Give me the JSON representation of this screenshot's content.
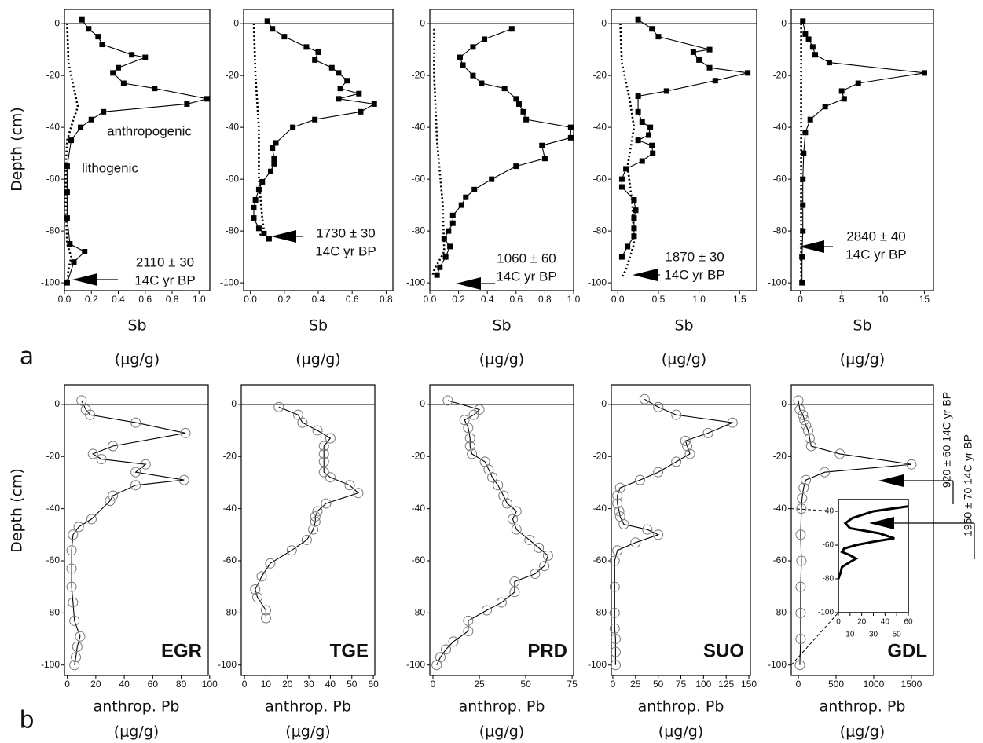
{
  "chart_data": [
    {
      "type": "line",
      "panel_label": "a",
      "ylabel": "Depth (cm)",
      "xlabel": "Sb",
      "xunit": "(μg/g)",
      "xlim": [
        0,
        1.08
      ],
      "xticks": [
        {
          "value": 0,
          "label": "0.0"
        },
        0.2,
        0.4,
        0.6,
        0.8,
        {
          "value": 1,
          "label": "1.0"
        }
      ],
      "ylim": [
        -103,
        5.5
      ],
      "yticks": [
        0,
        -20,
        -40,
        -60,
        -80,
        -100
      ],
      "annotation": [
        "2110 ± 30",
        "14C yr BP"
      ],
      "series": [
        {
          "name": "anthropogenic",
          "color": "#000000",
          "marker": "square",
          "line_style": "solid",
          "y": [
            1.5,
            -2,
            -5,
            -8,
            -12,
            -13,
            -17,
            -19,
            -23,
            -25,
            -29,
            -31,
            -34,
            -37,
            -40,
            -45,
            -55,
            -65,
            -75,
            -85,
            -88,
            -92,
            -100
          ],
          "x": [
            0.13,
            0.18,
            0.25,
            0.28,
            0.5,
            0.6,
            0.4,
            0.36,
            0.44,
            0.67,
            1.06,
            0.91,
            0.29,
            0.2,
            0.12,
            0.05,
            0.02,
            0.02,
            0.02,
            0.04,
            0.15,
            0.07,
            0.02
          ]
        },
        {
          "name": "lithogenic",
          "color": "#000000",
          "marker": "none",
          "line_style": "dotted",
          "y": [
            0,
            -15,
            -25,
            -32,
            -38,
            -45,
            -55,
            -70,
            -85,
            -90,
            -95,
            -100
          ],
          "x": [
            0.02,
            0.03,
            0.07,
            0.1,
            0.06,
            0.02,
            0.01,
            0.01,
            0.02,
            0.05,
            0.03,
            0.02
          ]
        }
      ]
    },
    {
      "type": "line",
      "xlabel": "Sb",
      "xunit": "(μg/g)",
      "xlim": [
        -0.04,
        0.84
      ],
      "xticks": [
        {
          "value": 0,
          "label": "0.0"
        },
        0.2,
        0.4,
        0.6,
        0.8
      ],
      "ylim": [
        -103,
        5.5
      ],
      "yticks": [
        0,
        -20,
        -40,
        -60,
        -80,
        -100
      ],
      "annotation": [
        "1730 ± 30",
        "14C yr BP"
      ],
      "series": [
        {
          "color": "#000000",
          "marker": "square",
          "line_style": "solid",
          "y": [
            1,
            -2,
            -5,
            -9,
            -11,
            -14,
            -17,
            -19,
            -22,
            -25,
            -27,
            -29,
            -31,
            -34,
            -37,
            -40,
            -46,
            -48,
            -52,
            -54,
            -57,
            -61,
            -64,
            -68,
            -71,
            -75,
            -79,
            -81,
            -83
          ],
          "x": [
            0.1,
            0.13,
            0.2,
            0.33,
            0.4,
            0.38,
            0.48,
            0.52,
            0.57,
            0.53,
            0.64,
            0.52,
            0.73,
            0.65,
            0.38,
            0.25,
            0.15,
            0.13,
            0.14,
            0.14,
            0.12,
            0.07,
            0.05,
            0.03,
            0.02,
            0.02,
            0.05,
            0.08,
            0.11
          ]
        },
        {
          "color": "#000000",
          "marker": "none",
          "line_style": "dotted",
          "y": [
            0,
            -20,
            -40,
            -60,
            -75,
            -80,
            -82
          ],
          "x": [
            0.02,
            0.03,
            0.05,
            0.05,
            0.07,
            0.08,
            0.05
          ]
        }
      ]
    },
    {
      "type": "line",
      "xlabel": "Sb",
      "xunit": "(μg/g)",
      "xlim": [
        0,
        1
      ],
      "xticks": [
        {
          "value": 0,
          "label": "0.0"
        },
        0.2,
        0.4,
        0.6,
        0.8,
        {
          "value": 1,
          "label": "1.0"
        }
      ],
      "ylim": [
        -103,
        5.5
      ],
      "yticks": [
        0,
        -20,
        -40,
        -60,
        -80,
        -100
      ],
      "annotation": [
        "1060 ± 60",
        "14C yr BP"
      ],
      "series": [
        {
          "color": "#000000",
          "marker": "square",
          "line_style": "solid",
          "y": [
            -2,
            -6,
            -9,
            -13,
            -16,
            -20,
            -23,
            -25,
            -29,
            -31,
            -34,
            -37,
            -40,
            -44,
            -47,
            -52,
            -55,
            -60,
            -64,
            -67,
            -70,
            -74,
            -77,
            -80,
            -83,
            -86,
            -90,
            -94,
            -97
          ],
          "x": [
            0.57,
            0.38,
            0.3,
            0.21,
            0.23,
            0.3,
            0.36,
            0.52,
            0.6,
            0.62,
            0.65,
            0.67,
            0.98,
            0.98,
            0.78,
            0.8,
            0.6,
            0.43,
            0.31,
            0.25,
            0.22,
            0.16,
            0.16,
            0.13,
            0.1,
            0.14,
            0.11,
            0.07,
            0.05
          ]
        },
        {
          "color": "#000000",
          "marker": "none",
          "line_style": "dotted",
          "y": [
            -2,
            -20,
            -45,
            -70,
            -88,
            -95,
            -97
          ],
          "x": [
            0.03,
            0.03,
            0.05,
            0.09,
            0.1,
            0.03,
            0.02
          ]
        }
      ]
    },
    {
      "type": "line",
      "xlabel": "Sb",
      "xunit": "(μg/g)",
      "xlim": [
        -0.08,
        1.71
      ],
      "xticks": [
        {
          "value": 0,
          "label": "0.0"
        },
        0.5,
        {
          "value": 1,
          "label": "1.0"
        },
        1.5
      ],
      "ylim": [
        -103,
        5.5
      ],
      "yticks": [
        0,
        -20,
        -40,
        -60,
        -80,
        -100
      ],
      "annotation": [
        "1870 ± 30",
        "14C yr BP"
      ],
      "series": [
        {
          "color": "#000000",
          "marker": "square",
          "line_style": "solid",
          "y": [
            1.5,
            -2,
            -5,
            -10,
            -11,
            -14,
            -17,
            -19,
            -22,
            -26,
            -28,
            -34,
            -38,
            -40,
            -43,
            -45,
            -47,
            -50,
            -53,
            -56,
            -60,
            -63,
            -68,
            -72,
            -75,
            -79,
            -82,
            -86,
            -90
          ],
          "x": [
            0.25,
            0.42,
            0.5,
            1.13,
            0.93,
            1.0,
            1.13,
            1.6,
            1.2,
            0.6,
            0.25,
            0.25,
            0.3,
            0.4,
            0.38,
            0.25,
            0.42,
            0.43,
            0.3,
            0.1,
            0.05,
            0.05,
            0.2,
            0.22,
            0.2,
            0.2,
            0.2,
            0.12,
            0.05
          ]
        },
        {
          "color": "#000000",
          "marker": "none",
          "line_style": "dotted",
          "y": [
            0,
            -15,
            -30,
            -40,
            -55,
            -70,
            -85,
            -95,
            -98
          ],
          "x": [
            0.03,
            0.05,
            0.15,
            0.2,
            0.12,
            0.18,
            0.2,
            0.1,
            0.05
          ]
        }
      ]
    },
    {
      "type": "line",
      "xlabel": "Sb",
      "xunit": "(μg/g)",
      "xlim": [
        -1.1,
        16.1
      ],
      "xticks": [
        0,
        5,
        10,
        15
      ],
      "ylim": [
        -103,
        5.5
      ],
      "yticks": [
        0,
        -20,
        -40,
        -60,
        -80,
        -100
      ],
      "annotation": [
        "2840 ± 40",
        "14C yr BP"
      ],
      "series": [
        {
          "color": "#000000",
          "marker": "square",
          "line_style": "solid",
          "y": [
            1,
            -4,
            -6,
            -9,
            -12,
            -15,
            -19,
            -23,
            -26,
            -29,
            -32,
            -37,
            -42,
            -50,
            -60,
            -70,
            -80,
            -90,
            -100
          ],
          "x": [
            0.3,
            0.6,
            1,
            1.5,
            1.8,
            3.5,
            15,
            7,
            5,
            5.3,
            3,
            1.2,
            0.6,
            0.4,
            0.3,
            0.3,
            0.3,
            0.2,
            0.2
          ]
        },
        {
          "color": "#000000",
          "marker": "none",
          "line_style": "dotted",
          "y": [
            0,
            -50,
            -100
          ],
          "x": [
            0.1,
            0.1,
            0.1
          ]
        }
      ]
    },
    {
      "type": "line",
      "panel_label": "b",
      "ylabel": "Depth (cm)",
      "xlabel": "anthrop. Pb",
      "xunit": "(μg/g)",
      "name": "EGR",
      "xlim": [
        -2,
        99
      ],
      "xticks": [
        0,
        20,
        40,
        60,
        80,
        100
      ],
      "ylim": [
        -104,
        7.5
      ],
      "yticks": [
        0,
        -20,
        -40,
        -60,
        -80,
        -100
      ],
      "series": [
        {
          "color": "#000000",
          "marker": "circle",
          "line_style": "solid",
          "y": [
            1.5,
            -2,
            -4,
            -7,
            -11,
            -16,
            -19,
            -21,
            -23,
            -26,
            -29,
            -31,
            -35,
            -37,
            -44,
            -47,
            -50,
            -56,
            -63,
            -70,
            -76,
            -83,
            -89,
            -93,
            -97,
            -100
          ],
          "x": [
            10,
            13,
            16,
            48,
            83,
            32,
            18,
            24,
            55,
            48,
            82,
            48,
            32,
            30,
            17,
            8,
            4,
            3,
            3,
            3,
            4,
            5,
            9,
            7,
            6,
            5
          ]
        }
      ]
    },
    {
      "type": "line",
      "xlabel": "anthrop. Pb",
      "xunit": "(μg/g)",
      "name": "TGE",
      "xlim": [
        -1.5,
        60.7
      ],
      "xticks": [
        0,
        10,
        20,
        30,
        40,
        50,
        60
      ],
      "ylim": [
        -104,
        7.5
      ],
      "yticks": [
        0,
        -20,
        -40,
        -60,
        -80,
        -100
      ],
      "series": [
        {
          "color": "#000000",
          "marker": "circle",
          "line_style": "solid",
          "y": [
            -1,
            -4,
            -7,
            -10,
            -13,
            -16,
            -19,
            -22,
            -26,
            -28,
            -31,
            -34,
            -38,
            -41,
            -43,
            -45,
            -48,
            -52,
            -56,
            -61,
            -66,
            -71,
            -74,
            -79,
            -82
          ],
          "x": [
            16,
            25,
            27,
            34,
            40,
            37,
            37,
            37,
            37,
            40,
            49,
            53,
            38,
            34,
            33,
            33,
            32,
            29,
            22,
            12,
            8,
            5,
            6,
            10,
            10
          ]
        }
      ]
    },
    {
      "type": "line",
      "xlabel": "anthrop. Pb",
      "xunit": "(μg/g)",
      "name": "PRD",
      "xlim": [
        -1.7,
        75.8
      ],
      "xticks": [
        0,
        25,
        50,
        75
      ],
      "ylim": [
        -104,
        7.5
      ],
      "yticks": [
        0,
        -20,
        -40,
        -60,
        -80,
        -100
      ],
      "series": [
        {
          "color": "#000000",
          "marker": "circle",
          "line_style": "solid",
          "y": [
            1.5,
            -2,
            -4,
            -6,
            -9,
            -13,
            -16,
            -19,
            -22,
            -25,
            -28,
            -31,
            -35,
            -38,
            -41,
            -44,
            -48,
            -52,
            -55,
            -58,
            -62,
            -65,
            -68,
            -72,
            -76,
            -79,
            -83,
            -87,
            -91,
            -94,
            -97,
            -100
          ],
          "x": [
            8,
            25,
            22,
            17,
            19,
            20,
            20,
            21,
            28,
            30,
            32,
            35,
            38,
            40,
            45,
            43,
            45,
            52,
            57,
            62,
            60,
            55,
            44,
            44,
            37,
            29,
            19,
            19,
            11,
            7,
            4,
            2
          ]
        }
      ]
    },
    {
      "type": "line",
      "xlabel": "anthrop. Pb",
      "xunit": "(μg/g)",
      "name": "SUO",
      "xlim": [
        -1.7,
        151.7
      ],
      "xticks": [
        0,
        25,
        50,
        75,
        100,
        125,
        150
      ],
      "ylim": [
        -104,
        7.5
      ],
      "yticks": [
        0,
        -20,
        -40,
        -60,
        -80,
        -100
      ],
      "series": [
        {
          "color": "#000000",
          "marker": "circle",
          "line_style": "solid",
          "y": [
            2,
            -1,
            -4,
            -7,
            -11,
            -14,
            -16,
            -19,
            -22,
            -26,
            -29,
            -32,
            -35,
            -38,
            -41,
            -43,
            -46,
            -48,
            -50,
            -53,
            -56,
            -60,
            -70,
            -80,
            -86,
            -90,
            -95,
            -100
          ],
          "x": [
            35,
            50,
            70,
            132,
            105,
            80,
            82,
            85,
            70,
            50,
            30,
            8,
            5,
            5,
            7,
            8,
            12,
            38,
            50,
            25,
            5,
            2,
            2,
            2,
            2,
            3,
            3,
            3
          ]
        }
      ]
    },
    {
      "type": "line",
      "xlabel": "anthrop. Pb",
      "xunit": "(μg/g)",
      "name": "GDL",
      "xlim": [
        -94,
        1792
      ],
      "xticks": [
        0,
        500,
        1000,
        1500
      ],
      "ylim": [
        -104,
        7.5
      ],
      "yticks": [
        0,
        -20,
        -40,
        -60,
        -80,
        -100
      ],
      "side_notes": [
        "920 ± 60 14C yr BP",
        "1950 ± 70 14C yr BP"
      ],
      "series": [
        {
          "color": "#000000",
          "marker": "circle",
          "line_style": "solid",
          "y": [
            1.5,
            -2,
            -4,
            -6,
            -8,
            -10,
            -13,
            -16,
            -19,
            -23,
            -26,
            -29,
            -32,
            -36,
            -40,
            -50,
            -60,
            -70,
            -80,
            -90,
            -100
          ],
          "x": [
            0,
            20,
            60,
            80,
            100,
            130,
            150,
            170,
            550,
            1500,
            350,
            100,
            70,
            50,
            40,
            30,
            40,
            30,
            30,
            30,
            20
          ]
        }
      ],
      "inset": {
        "type": "line",
        "xlim": [
          0,
          60
        ],
        "xticks": [
          0,
          10,
          20,
          30,
          40,
          50,
          60
        ],
        "ylim": [
          -100,
          -33
        ],
        "yticks": [
          -40,
          -60,
          -80,
          -100
        ],
        "series": [
          {
            "color": "#000000",
            "marker": "none",
            "line_style": "thick",
            "y": [
              -37,
              -40,
              -44,
              -47,
              -50,
              -53,
              -56,
              -58,
              -60,
              -62,
              -64,
              -66,
              -68,
              -70,
              -73,
              -76,
              -80
            ],
            "x": [
              60,
              30,
              12,
              6,
              10,
              35,
              48,
              30,
              15,
              5,
              3,
              10,
              15,
              10,
              3,
              2,
              0
            ]
          }
        ]
      }
    }
  ]
}
